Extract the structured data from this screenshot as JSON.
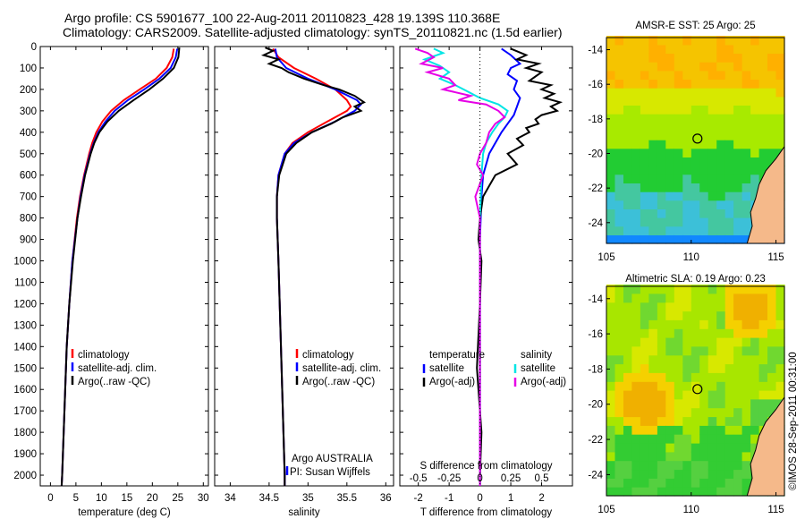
{
  "title_line1": "Argo profile: CS 5901677_100 22-Aug-2011 20110823_428 19.139S 110.368E",
  "title_line2": "Climatology: CARS2009. Satellite-adjusted climatology: synTS_20110821.nc (1.5d earlier)",
  "credit": "©IMOS 28-Sep-2011 00:31:00",
  "chart_data": [
    {
      "type": "line",
      "panel": "temperature",
      "xlabel": "temperature (deg C)",
      "ylabel": "",
      "xlim": [
        -2,
        31
      ],
      "ylim": [
        2050,
        0
      ],
      "xticks": [
        0,
        5,
        10,
        15,
        20,
        25,
        30
      ],
      "yticks": [
        0,
        100,
        200,
        300,
        400,
        500,
        600,
        700,
        800,
        900,
        1000,
        1100,
        1200,
        1300,
        1400,
        1500,
        1600,
        1700,
        1800,
        1900,
        2000
      ],
      "legend": [
        "climatology",
        "satellite-adj. clim.",
        "Argo(..raw -QC)"
      ],
      "series": [
        {
          "name": "climatology",
          "color": "#ff0000",
          "depth": [
            10,
            50,
            100,
            150,
            200,
            250,
            300,
            350,
            400,
            450,
            500,
            600,
            700,
            800,
            1000,
            1200,
            1400,
            1600,
            1800,
            2000,
            2050
          ],
          "values": [
            24.2,
            23.9,
            22.8,
            20.7,
            17.5,
            14.4,
            11.9,
            10.2,
            9.0,
            8.2,
            7.6,
            6.6,
            5.8,
            5.2,
            4.3,
            3.7,
            3.2,
            2.9,
            2.6,
            2.3,
            2.2
          ]
        },
        {
          "name": "satellite-adj. clim.",
          "color": "#0000ff",
          "depth": [
            10,
            50,
            100,
            150,
            200,
            250,
            300,
            350,
            400,
            450,
            500,
            600,
            700,
            800,
            1000,
            1200,
            1400,
            1600,
            1800,
            2000,
            2050
          ],
          "values": [
            24.9,
            24.6,
            23.6,
            21.4,
            18.4,
            15.2,
            12.6,
            10.8,
            9.4,
            8.5,
            7.8,
            6.7,
            5.9,
            5.3,
            4.3,
            3.7,
            3.2,
            2.9,
            2.6,
            2.3,
            2.2
          ]
        },
        {
          "name": "Argo(..raw -QC)",
          "color": "#000000",
          "depth": [
            5,
            50,
            100,
            150,
            200,
            250,
            300,
            350,
            400,
            450,
            500,
            600,
            700,
            800,
            1000,
            1200,
            1400,
            1600,
            1800,
            2000,
            2050
          ],
          "values": [
            25.3,
            25.1,
            24.2,
            22.1,
            19.4,
            16.3,
            13.4,
            11.2,
            9.6,
            8.6,
            7.9,
            6.8,
            6.0,
            5.3,
            4.4,
            3.7,
            3.2,
            2.9,
            2.6,
            2.3,
            2.2
          ]
        }
      ]
    },
    {
      "type": "line",
      "panel": "salinity",
      "xlabel": "salinity",
      "ylabel": "",
      "xlim": [
        33.8,
        36.1
      ],
      "ylim": [
        2050,
        0
      ],
      "xticks": [
        34,
        34.5,
        35,
        35.5,
        36
      ],
      "legend": [
        "climatology",
        "satellite-adj. clim.",
        "Argo(..raw -QC)"
      ],
      "annotation": [
        "Argo AUSTRALIA",
        "PI: Susan Wijffels"
      ],
      "series": [
        {
          "name": "climatology",
          "color": "#ff0000",
          "depth": [
            10,
            50,
            100,
            150,
            200,
            250,
            280,
            300,
            350,
            400,
            450,
            500,
            600,
            700,
            800,
            1000,
            1500,
            2000,
            2050
          ],
          "values": [
            34.55,
            34.62,
            34.82,
            35.1,
            35.35,
            35.5,
            35.55,
            35.5,
            35.25,
            35.0,
            34.8,
            34.7,
            34.62,
            34.6,
            34.6,
            34.62,
            34.66,
            34.7,
            34.7
          ]
        },
        {
          "name": "satellite-adj. clim.",
          "color": "#0000ff",
          "depth": [
            10,
            50,
            100,
            150,
            200,
            250,
            270,
            300,
            350,
            400,
            450,
            500,
            600,
            700,
            800,
            1000,
            1500,
            2000,
            2050
          ],
          "values": [
            34.58,
            34.6,
            34.72,
            35.0,
            35.35,
            35.63,
            35.68,
            35.6,
            35.35,
            35.05,
            34.82,
            34.7,
            34.62,
            34.6,
            34.6,
            34.62,
            34.66,
            34.7,
            34.7
          ]
        },
        {
          "name": "Argo(..raw -QC)",
          "color": "#000000",
          "depth": [
            5,
            20,
            40,
            60,
            80,
            100,
            120,
            150,
            180,
            200,
            230,
            260,
            280,
            300,
            330,
            360,
            400,
            450,
            500,
            600,
            700,
            800,
            1000,
            1500,
            2000,
            2050
          ],
          "values": [
            34.45,
            34.55,
            34.43,
            34.62,
            34.5,
            34.66,
            34.75,
            34.95,
            35.2,
            35.4,
            35.6,
            35.72,
            35.6,
            35.68,
            35.45,
            35.3,
            35.05,
            34.85,
            34.72,
            34.63,
            34.6,
            34.6,
            34.62,
            34.66,
            34.7,
            34.7
          ]
        }
      ]
    },
    {
      "type": "line",
      "panel": "difference",
      "xlabel": "T difference from climatology",
      "xlabel_top": "S difference from climatology",
      "ylabel": "",
      "xlim": [
        -2.6,
        3.0
      ],
      "ylim": [
        2050,
        0
      ],
      "xticks": [
        -2,
        -1,
        0,
        1,
        2
      ],
      "xticks_top": [
        "-0.5",
        "-0.25",
        "0",
        "0.25",
        "0.5"
      ],
      "legend": [
        "temperature",
        "satellite",
        "Argo(-adj)",
        "salinity",
        "satellite",
        "Argo(-adj)"
      ],
      "series": [
        {
          "name": "temperature satellite",
          "color": "#0000ff",
          "depth": [
            10,
            40,
            80,
            100,
            130,
            160,
            200,
            240,
            280,
            320,
            360,
            400,
            450,
            500,
            600,
            700,
            900,
            1200,
            1600,
            2000,
            2050
          ],
          "values": [
            0.7,
            1.0,
            1.3,
            1.0,
            0.9,
            1.2,
            1.1,
            1.3,
            1.2,
            1.1,
            0.9,
            0.7,
            0.5,
            0.3,
            0.1,
            0.05,
            0.0,
            0.0,
            0.0,
            0.0,
            0.0
          ]
        },
        {
          "name": "temperature Argo(-adj)",
          "color": "#000000",
          "depth": [
            10,
            40,
            60,
            80,
            100,
            120,
            140,
            160,
            180,
            200,
            220,
            240,
            260,
            280,
            300,
            320,
            340,
            360,
            380,
            400,
            430,
            460,
            500,
            550,
            600,
            650,
            700,
            800,
            900,
            1000,
            1200,
            1500,
            1800,
            2000,
            2050
          ],
          "values": [
            1.0,
            1.5,
            1.2,
            1.9,
            1.5,
            2.0,
            1.8,
            1.6,
            2.3,
            2.0,
            2.4,
            2.1,
            2.6,
            2.3,
            2.5,
            2.0,
            1.8,
            1.9,
            1.5,
            1.6,
            1.2,
            1.4,
            0.9,
            1.2,
            0.5,
            0.3,
            0.1,
            0.0,
            -0.05,
            0.05,
            0.0,
            -0.1,
            0.05,
            0.0,
            0.0
          ]
        },
        {
          "name": "salinity satellite",
          "color": "#00e5e5",
          "depth": [
            10,
            30,
            60,
            90,
            120,
            150,
            180,
            210,
            240,
            270,
            300,
            330,
            360,
            400,
            450,
            500,
            600,
            800,
            1200,
            2000,
            2050
          ],
          "values": [
            -1.5,
            -1.2,
            -1.8,
            -1.3,
            -1.0,
            -1.3,
            -0.8,
            -0.4,
            0.0,
            0.6,
            0.9,
            0.8,
            0.6,
            0.4,
            0.2,
            0.1,
            0.05,
            0.0,
            0.0,
            0.0,
            0.0
          ]
        },
        {
          "name": "salinity Argo(-adj)",
          "color": "#e600e6",
          "depth": [
            10,
            30,
            50,
            80,
            100,
            120,
            150,
            180,
            200,
            230,
            250,
            270,
            300,
            330,
            360,
            400,
            450,
            500,
            550,
            600,
            700,
            800,
            1000,
            1500,
            2000,
            2050
          ],
          "values": [
            -2.1,
            -1.7,
            -1.5,
            -1.9,
            -1.2,
            -1.7,
            -1.0,
            -0.8,
            -1.2,
            -0.3,
            -0.7,
            0.2,
            0.6,
            0.8,
            0.5,
            0.3,
            0.2,
            0.0,
            -0.1,
            0.1,
            -0.15,
            0.0,
            0.0,
            0.0,
            0.0,
            0.0
          ]
        }
      ]
    },
    {
      "type": "heatmap",
      "panel": "map",
      "title": "AMSR-E SST: 25 Argo: 25",
      "xlim": [
        105,
        115.5
      ],
      "ylim": [
        -25.2,
        -13.3
      ],
      "xticks": [
        105,
        110,
        115
      ],
      "yticks": [
        -14,
        -16,
        -18,
        -20,
        -22,
        -24
      ],
      "marker": {
        "lon": 110.37,
        "lat": -19.14
      }
    },
    {
      "type": "heatmap",
      "panel": "map",
      "title": "Altimetric SLA: 0.19 Argo: 0.23",
      "xlim": [
        105,
        115.5
      ],
      "ylim": [
        -25.2,
        -13.3
      ],
      "xticks": [
        105,
        110,
        115
      ],
      "yticks": [
        -14,
        -16,
        -18,
        -20,
        -22,
        -24
      ],
      "marker": {
        "lon": 110.37,
        "lat": -19.14
      }
    }
  ]
}
